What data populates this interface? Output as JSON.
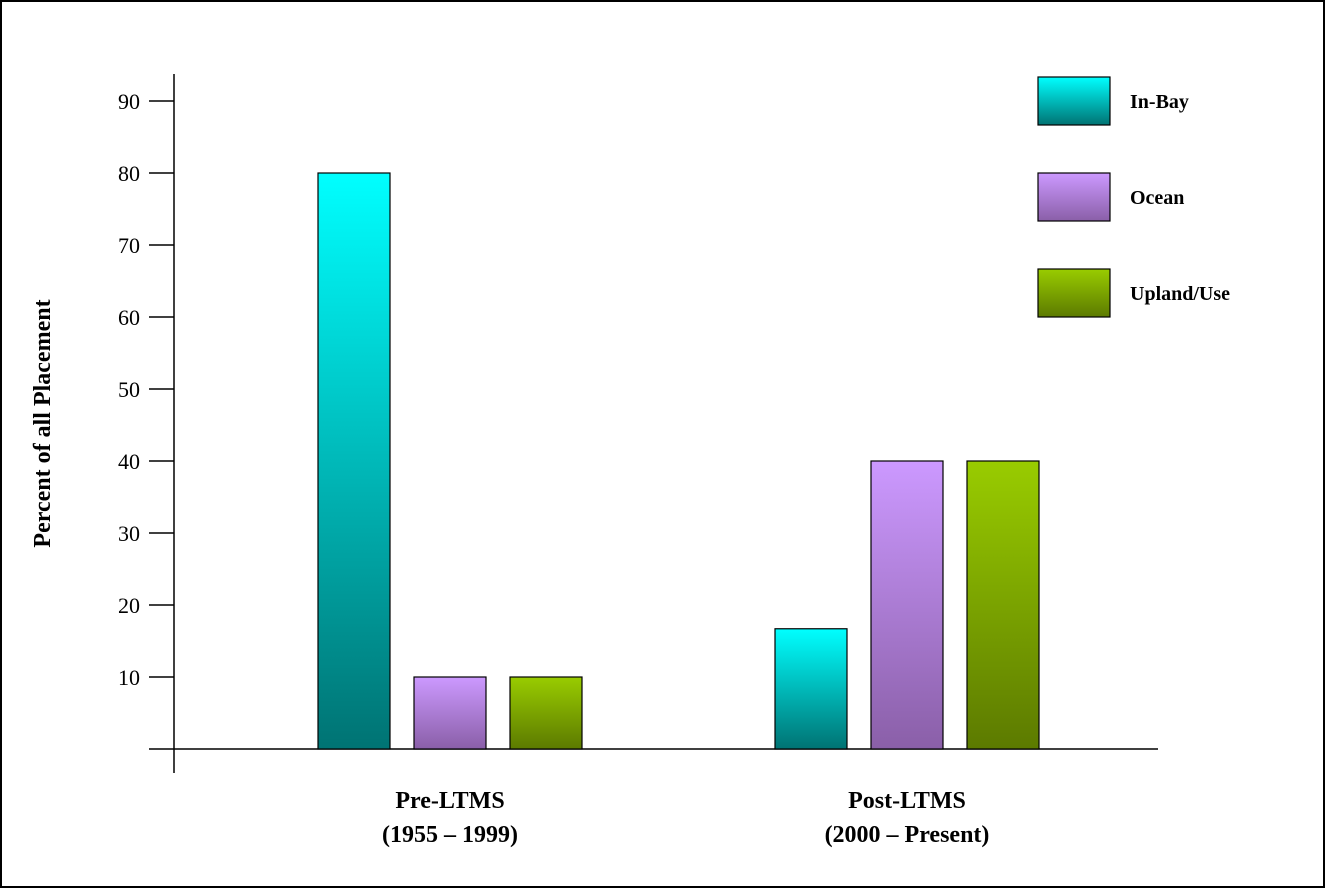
{
  "chart_data": {
    "type": "bar",
    "categories": [
      "Pre-LTMS\n(1955 – 1999)",
      "Post-LTMS\n(2000 – Present)"
    ],
    "series": [
      {
        "name": "In-Bay",
        "values": [
          80,
          16.7
        ],
        "color_top": "#00ffff",
        "color_bottom": "#007373"
      },
      {
        "name": "Ocean",
        "values": [
          10,
          40
        ],
        "color_top": "#cc99ff",
        "color_bottom": "#8a5fa8"
      },
      {
        "name": "Upland/Use",
        "values": [
          10,
          40
        ],
        "color_top": "#99cc00",
        "color_bottom": "#5c7a00"
      }
    ],
    "xlabel": "",
    "ylabel": "Percent of all Placement",
    "ylim": [
      0,
      90
    ],
    "yticks": [
      10,
      20,
      30,
      40,
      50,
      60,
      70,
      80,
      90
    ],
    "grid": false,
    "legend": "top-right"
  }
}
